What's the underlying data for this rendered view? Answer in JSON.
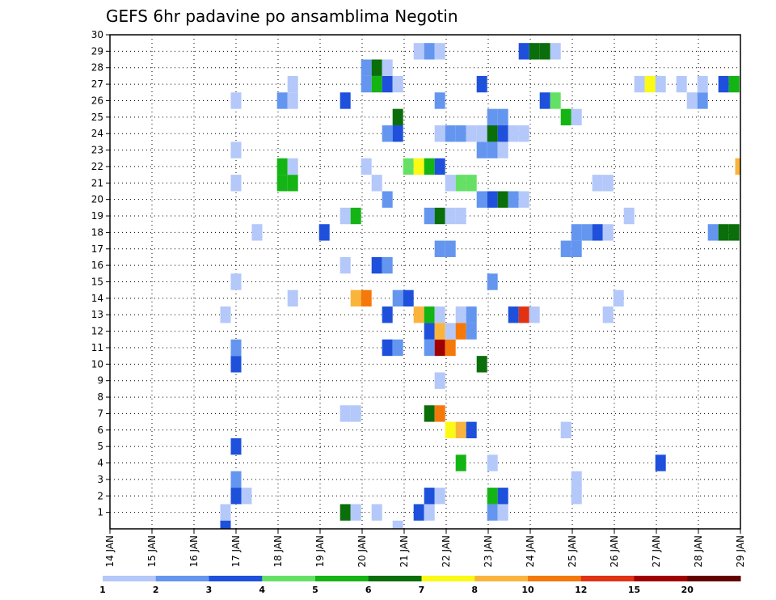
{
  "chart_data": {
    "type": "heatmap",
    "title": "GEFS 6hr padavine po ansamblima Negotin",
    "x_ticks": [
      "14 JAN",
      "15 JAN",
      "16 JAN",
      "17 JAN",
      "18 JAN",
      "19 JAN",
      "20 JAN",
      "21 JAN",
      "22 JAN",
      "23 JAN",
      "24 JAN",
      "25 JAN",
      "26 JAN",
      "27 JAN",
      "28 JAN",
      "29 JAN"
    ],
    "x_range_days": [
      14,
      29
    ],
    "y_ticks": [
      1,
      2,
      3,
      4,
      5,
      6,
      7,
      8,
      9,
      10,
      11,
      12,
      13,
      14,
      15,
      16,
      17,
      18,
      19,
      20,
      21,
      22,
      23,
      24,
      25,
      26,
      27,
      28,
      29,
      30
    ],
    "y_range": [
      0,
      30
    ],
    "grid": true,
    "legend": {
      "placement": "bottom",
      "labels": [
        "1",
        "2",
        "3",
        "4",
        "5",
        "6",
        "7",
        "8",
        "10",
        "12",
        "15",
        "20"
      ],
      "colors": [
        "#b4c8fa",
        "#6496f0",
        "#1e50dc",
        "#64e164",
        "#14b414",
        "#0a6e0a",
        "#fafa14",
        "#fab43c",
        "#f5780a",
        "#e13214",
        "#a00000",
        "#640000"
      ]
    },
    "cells": [
      {
        "day": 16.75,
        "member": 1,
        "level": 1
      },
      {
        "day": 16.75,
        "member": 0,
        "level": 3
      },
      {
        "day": 19.6,
        "member": 1,
        "level": 6
      },
      {
        "day": 19.85,
        "member": 1,
        "level": 1
      },
      {
        "day": 20.35,
        "member": 1,
        "level": 1
      },
      {
        "day": 21.35,
        "member": 1,
        "level": 3
      },
      {
        "day": 21.6,
        "member": 1,
        "level": 1
      },
      {
        "day": 20.85,
        "member": 0,
        "level": 1
      },
      {
        "day": 23.1,
        "member": 1,
        "level": 2
      },
      {
        "day": 23.35,
        "member": 1,
        "level": 1
      },
      {
        "day": 17.0,
        "member": 2,
        "level": 3
      },
      {
        "day": 17.25,
        "member": 2,
        "level": 1
      },
      {
        "day": 21.6,
        "member": 2,
        "level": 3
      },
      {
        "day": 21.85,
        "member": 2,
        "level": 1
      },
      {
        "day": 23.1,
        "member": 2,
        "level": 5
      },
      {
        "day": 23.35,
        "member": 2,
        "level": 3
      },
      {
        "day": 25.1,
        "member": 2,
        "level": 1
      },
      {
        "day": 17.0,
        "member": 3,
        "level": 2
      },
      {
        "day": 25.1,
        "member": 3,
        "level": 1
      },
      {
        "day": 22.35,
        "member": 4,
        "level": 5
      },
      {
        "day": 23.1,
        "member": 4,
        "level": 1
      },
      {
        "day": 27.1,
        "member": 4,
        "level": 3
      },
      {
        "day": 17.0,
        "member": 5,
        "level": 3
      },
      {
        "day": 22.1,
        "member": 6,
        "level": 7
      },
      {
        "day": 22.35,
        "member": 6,
        "level": 8
      },
      {
        "day": 22.6,
        "member": 6,
        "level": 3
      },
      {
        "day": 24.85,
        "member": 6,
        "level": 1
      },
      {
        "day": 19.6,
        "member": 7,
        "level": 1
      },
      {
        "day": 19.85,
        "member": 7,
        "level": 1
      },
      {
        "day": 21.6,
        "member": 7,
        "level": 6
      },
      {
        "day": 21.85,
        "member": 7,
        "level": 9
      },
      {
        "day": 21.85,
        "member": 9,
        "level": 1
      },
      {
        "day": 17.0,
        "member": 10,
        "level": 3
      },
      {
        "day": 22.85,
        "member": 10,
        "level": 6
      },
      {
        "day": 17.0,
        "member": 11,
        "level": 2
      },
      {
        "day": 20.6,
        "member": 11,
        "level": 3
      },
      {
        "day": 20.85,
        "member": 11,
        "level": 2
      },
      {
        "day": 21.6,
        "member": 11,
        "level": 2
      },
      {
        "day": 21.85,
        "member": 11,
        "level": 11
      },
      {
        "day": 22.1,
        "member": 11,
        "level": 9
      },
      {
        "day": 21.6,
        "member": 12,
        "level": 3
      },
      {
        "day": 21.85,
        "member": 12,
        "level": 8
      },
      {
        "day": 22.1,
        "member": 12,
        "level": 1
      },
      {
        "day": 22.35,
        "member": 12,
        "level": 9
      },
      {
        "day": 22.6,
        "member": 12,
        "level": 2
      },
      {
        "day": 16.75,
        "member": 13,
        "level": 1
      },
      {
        "day": 20.6,
        "member": 13,
        "level": 3
      },
      {
        "day": 21.35,
        "member": 13,
        "level": 8
      },
      {
        "day": 21.6,
        "member": 13,
        "level": 5
      },
      {
        "day": 21.85,
        "member": 13,
        "level": 1
      },
      {
        "day": 22.35,
        "member": 13,
        "level": 1
      },
      {
        "day": 22.6,
        "member": 13,
        "level": 2
      },
      {
        "day": 23.6,
        "member": 13,
        "level": 3
      },
      {
        "day": 23.85,
        "member": 13,
        "level": 10
      },
      {
        "day": 24.1,
        "member": 13,
        "level": 1
      },
      {
        "day": 25.85,
        "member": 13,
        "level": 1
      },
      {
        "day": 18.35,
        "member": 14,
        "level": 1
      },
      {
        "day": 19.85,
        "member": 14,
        "level": 8
      },
      {
        "day": 20.1,
        "member": 14,
        "level": 9
      },
      {
        "day": 20.85,
        "member": 14,
        "level": 2
      },
      {
        "day": 21.1,
        "member": 14,
        "level": 3
      },
      {
        "day": 26.1,
        "member": 14,
        "level": 1
      },
      {
        "day": 17.0,
        "member": 15,
        "level": 1
      },
      {
        "day": 23.1,
        "member": 15,
        "level": 2
      },
      {
        "day": 19.6,
        "member": 16,
        "level": 1
      },
      {
        "day": 20.35,
        "member": 16,
        "level": 3
      },
      {
        "day": 20.6,
        "member": 16,
        "level": 2
      },
      {
        "day": 21.85,
        "member": 17,
        "level": 2
      },
      {
        "day": 22.1,
        "member": 17,
        "level": 2
      },
      {
        "day": 24.85,
        "member": 17,
        "level": 2
      },
      {
        "day": 25.1,
        "member": 17,
        "level": 2
      },
      {
        "day": 17.5,
        "member": 18,
        "level": 1
      },
      {
        "day": 19.1,
        "member": 18,
        "level": 3
      },
      {
        "day": 25.1,
        "member": 18,
        "level": 2
      },
      {
        "day": 25.35,
        "member": 18,
        "level": 2
      },
      {
        "day": 25.6,
        "member": 18,
        "level": 3
      },
      {
        "day": 25.85,
        "member": 18,
        "level": 1
      },
      {
        "day": 28.35,
        "member": 18,
        "level": 2
      },
      {
        "day": 28.6,
        "member": 18,
        "level": 6
      },
      {
        "day": 28.85,
        "member": 18,
        "level": 6
      },
      {
        "day": 19.6,
        "member": 19,
        "level": 1
      },
      {
        "day": 19.85,
        "member": 19,
        "level": 5
      },
      {
        "day": 21.6,
        "member": 19,
        "level": 2
      },
      {
        "day": 21.85,
        "member": 19,
        "level": 6
      },
      {
        "day": 22.1,
        "member": 19,
        "level": 1
      },
      {
        "day": 22.35,
        "member": 19,
        "level": 1
      },
      {
        "day": 26.35,
        "member": 19,
        "level": 1
      },
      {
        "day": 20.6,
        "member": 20,
        "level": 2
      },
      {
        "day": 22.85,
        "member": 20,
        "level": 2
      },
      {
        "day": 23.1,
        "member": 20,
        "level": 3
      },
      {
        "day": 23.35,
        "member": 20,
        "level": 6
      },
      {
        "day": 23.6,
        "member": 20,
        "level": 2
      },
      {
        "day": 23.85,
        "member": 20,
        "level": 1
      },
      {
        "day": 17.0,
        "member": 21,
        "level": 1
      },
      {
        "day": 18.1,
        "member": 21,
        "level": 5
      },
      {
        "day": 18.35,
        "member": 21,
        "level": 5
      },
      {
        "day": 20.35,
        "member": 21,
        "level": 1
      },
      {
        "day": 22.1,
        "member": 21,
        "level": 1
      },
      {
        "day": 22.35,
        "member": 21,
        "level": 4
      },
      {
        "day": 22.6,
        "member": 21,
        "level": 4
      },
      {
        "day": 25.6,
        "member": 21,
        "level": 1
      },
      {
        "day": 25.85,
        "member": 21,
        "level": 1
      },
      {
        "day": 18.1,
        "member": 22,
        "level": 5
      },
      {
        "day": 18.35,
        "member": 22,
        "level": 1
      },
      {
        "day": 20.1,
        "member": 22,
        "level": 1
      },
      {
        "day": 21.1,
        "member": 22,
        "level": 4
      },
      {
        "day": 21.35,
        "member": 22,
        "level": 7
      },
      {
        "day": 21.6,
        "member": 22,
        "level": 5
      },
      {
        "day": 21.85,
        "member": 22,
        "level": 3
      },
      {
        "day": 29.0,
        "member": 22,
        "level": 8
      },
      {
        "day": 17.0,
        "member": 23,
        "level": 1
      },
      {
        "day": 22.85,
        "member": 23,
        "level": 2
      },
      {
        "day": 23.1,
        "member": 23,
        "level": 2
      },
      {
        "day": 23.35,
        "member": 23,
        "level": 1
      },
      {
        "day": 20.6,
        "member": 24,
        "level": 2
      },
      {
        "day": 20.85,
        "member": 24,
        "level": 3
      },
      {
        "day": 21.85,
        "member": 24,
        "level": 1
      },
      {
        "day": 22.1,
        "member": 24,
        "level": 2
      },
      {
        "day": 22.35,
        "member": 24,
        "level": 2
      },
      {
        "day": 22.6,
        "member": 24,
        "level": 1
      },
      {
        "day": 22.85,
        "member": 24,
        "level": 1
      },
      {
        "day": 23.1,
        "member": 24,
        "level": 6
      },
      {
        "day": 23.35,
        "member": 24,
        "level": 3
      },
      {
        "day": 23.6,
        "member": 24,
        "level": 1
      },
      {
        "day": 23.85,
        "member": 24,
        "level": 1
      },
      {
        "day": 20.85,
        "member": 25,
        "level": 6
      },
      {
        "day": 23.1,
        "member": 25,
        "level": 2
      },
      {
        "day": 23.35,
        "member": 25,
        "level": 2
      },
      {
        "day": 24.85,
        "member": 25,
        "level": 5
      },
      {
        "day": 25.1,
        "member": 25,
        "level": 1
      },
      {
        "day": 17.0,
        "member": 26,
        "level": 1
      },
      {
        "day": 18.1,
        "member": 26,
        "level": 2
      },
      {
        "day": 18.35,
        "member": 26,
        "level": 1
      },
      {
        "day": 19.6,
        "member": 26,
        "level": 3
      },
      {
        "day": 21.85,
        "member": 26,
        "level": 2
      },
      {
        "day": 24.35,
        "member": 26,
        "level": 3
      },
      {
        "day": 24.6,
        "member": 26,
        "level": 4
      },
      {
        "day": 27.85,
        "member": 26,
        "level": 1
      },
      {
        "day": 28.1,
        "member": 26,
        "level": 2
      },
      {
        "day": 18.35,
        "member": 27,
        "level": 1
      },
      {
        "day": 20.1,
        "member": 27,
        "level": 2
      },
      {
        "day": 20.35,
        "member": 27,
        "level": 5
      },
      {
        "day": 20.6,
        "member": 27,
        "level": 3
      },
      {
        "day": 20.85,
        "member": 27,
        "level": 1
      },
      {
        "day": 22.85,
        "member": 27,
        "level": 3
      },
      {
        "day": 26.6,
        "member": 27,
        "level": 1
      },
      {
        "day": 26.85,
        "member": 27,
        "level": 7
      },
      {
        "day": 27.1,
        "member": 27,
        "level": 1
      },
      {
        "day": 27.6,
        "member": 27,
        "level": 1
      },
      {
        "day": 28.1,
        "member": 27,
        "level": 1
      },
      {
        "day": 28.6,
        "member": 27,
        "level": 3
      },
      {
        "day": 28.85,
        "member": 27,
        "level": 5
      },
      {
        "day": 20.1,
        "member": 28,
        "level": 2
      },
      {
        "day": 20.35,
        "member": 28,
        "level": 6
      },
      {
        "day": 20.6,
        "member": 28,
        "level": 1
      },
      {
        "day": 21.35,
        "member": 29,
        "level": 1
      },
      {
        "day": 21.6,
        "member": 29,
        "level": 2
      },
      {
        "day": 21.85,
        "member": 29,
        "level": 1
      },
      {
        "day": 23.85,
        "member": 29,
        "level": 3
      },
      {
        "day": 24.1,
        "member": 29,
        "level": 6
      },
      {
        "day": 24.35,
        "member": 29,
        "level": 6
      },
      {
        "day": 24.6,
        "member": 29,
        "level": 1
      }
    ]
  }
}
